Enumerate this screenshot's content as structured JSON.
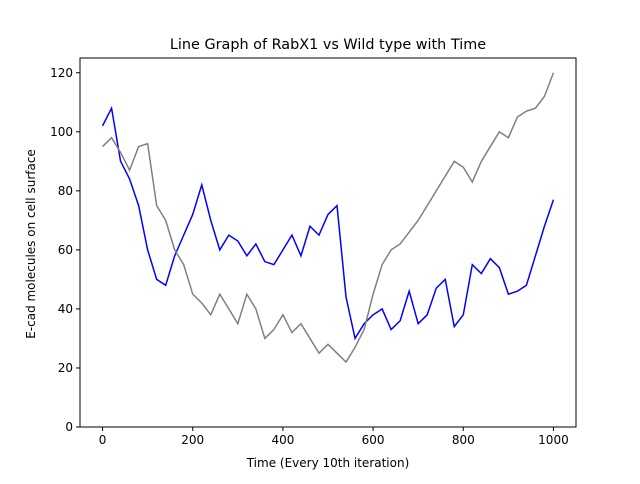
{
  "chart_data": {
    "type": "line",
    "title": "Line Graph of RabX1 vs Wild type with Time",
    "x_label": "Time (Every 10th iteration)",
    "y_label": "E-cad molecules on cell surface",
    "x": [
      0,
      20,
      40,
      60,
      80,
      100,
      120,
      140,
      160,
      180,
      200,
      220,
      240,
      260,
      280,
      300,
      320,
      340,
      360,
      380,
      400,
      420,
      440,
      460,
      480,
      500,
      520,
      540,
      560,
      580,
      600,
      620,
      640,
      660,
      680,
      700,
      720,
      740,
      760,
      780,
      800,
      820,
      840,
      860,
      880,
      900,
      920,
      940,
      960,
      980,
      1000
    ],
    "series": [
      {
        "color": "#0000ff",
        "values": [
          102,
          108,
          90,
          84,
          75,
          60,
          50,
          48,
          58,
          65,
          72,
          82,
          70,
          60,
          65,
          63,
          58,
          62,
          56,
          55,
          60,
          65,
          58,
          68,
          65,
          72,
          75,
          44,
          30,
          35,
          38,
          40,
          33,
          36,
          46,
          35,
          38,
          47,
          50,
          34,
          38,
          55,
          52,
          57,
          54,
          45,
          46,
          48,
          58,
          68,
          77
        ]
      },
      {
        "color": "#808080",
        "values": [
          95,
          98,
          93,
          87,
          95,
          96,
          75,
          70,
          60,
          55,
          45,
          42,
          38,
          45,
          40,
          35,
          45,
          40,
          30,
          33,
          38,
          32,
          35,
          30,
          25,
          28,
          25,
          22,
          27,
          33,
          45,
          55,
          60,
          62,
          66,
          70,
          75,
          80,
          85,
          90,
          88,
          83,
          90,
          95,
          100,
          98,
          105,
          107,
          108,
          112,
          120
        ]
      }
    ],
    "xlim": [
      -50,
      1050
    ],
    "ylim": [
      0,
      125
    ],
    "xticks": [
      0,
      200,
      400,
      600,
      800,
      1000
    ],
    "yticks": [
      0,
      20,
      40,
      60,
      80,
      100,
      120
    ]
  }
}
